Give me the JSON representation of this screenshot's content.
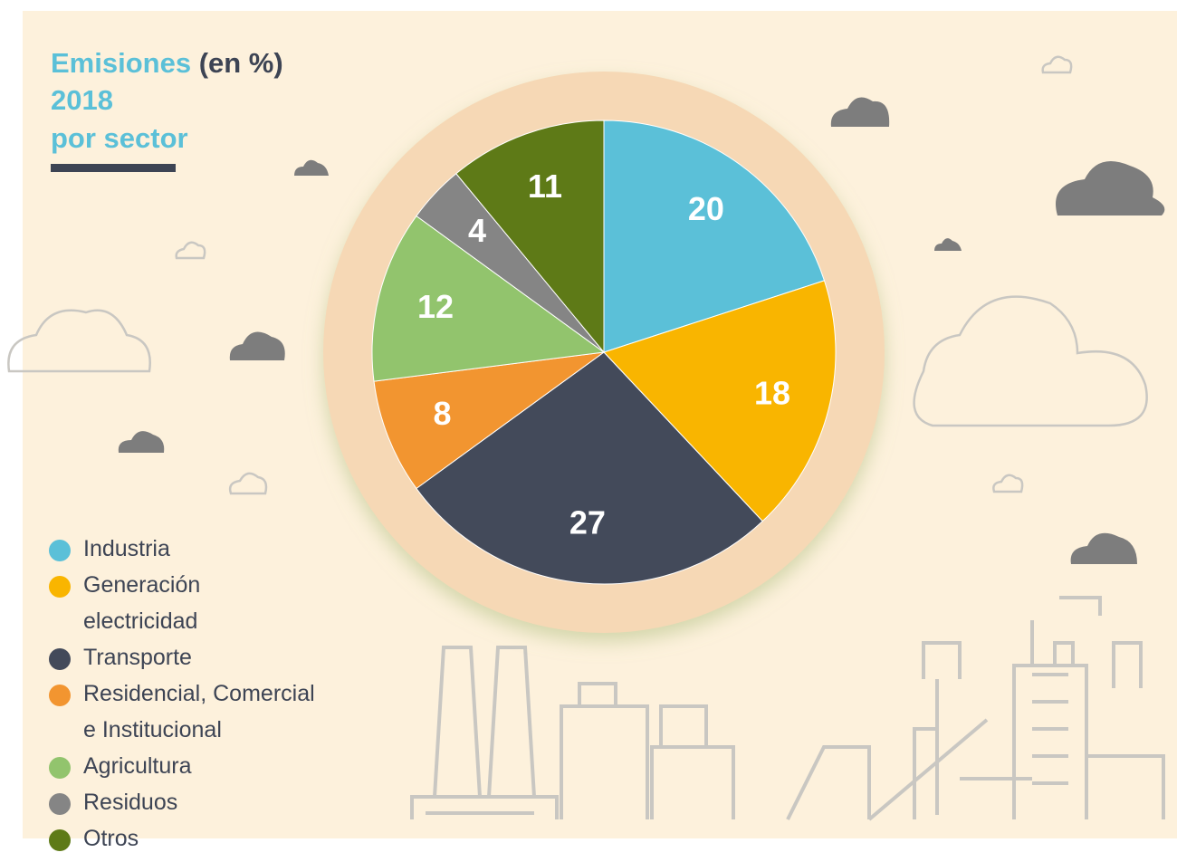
{
  "chart_data": {
    "type": "pie",
    "title": "Emisiones",
    "title_unit": "(en %)",
    "subtitle": [
      "2018",
      "por sector"
    ],
    "categories": [
      "Industria",
      "Generación electricidad",
      "Transporte",
      "Residencial, Comercial e Institucional",
      "Agricultura",
      "Residuos",
      "Otros"
    ],
    "values": [
      20,
      18,
      27,
      8,
      12,
      4,
      11
    ],
    "colors": [
      "#5bc0d8",
      "#f9b500",
      "#434a5a",
      "#f29530",
      "#92c46d",
      "#858585",
      "#5e7a17"
    ]
  }
}
